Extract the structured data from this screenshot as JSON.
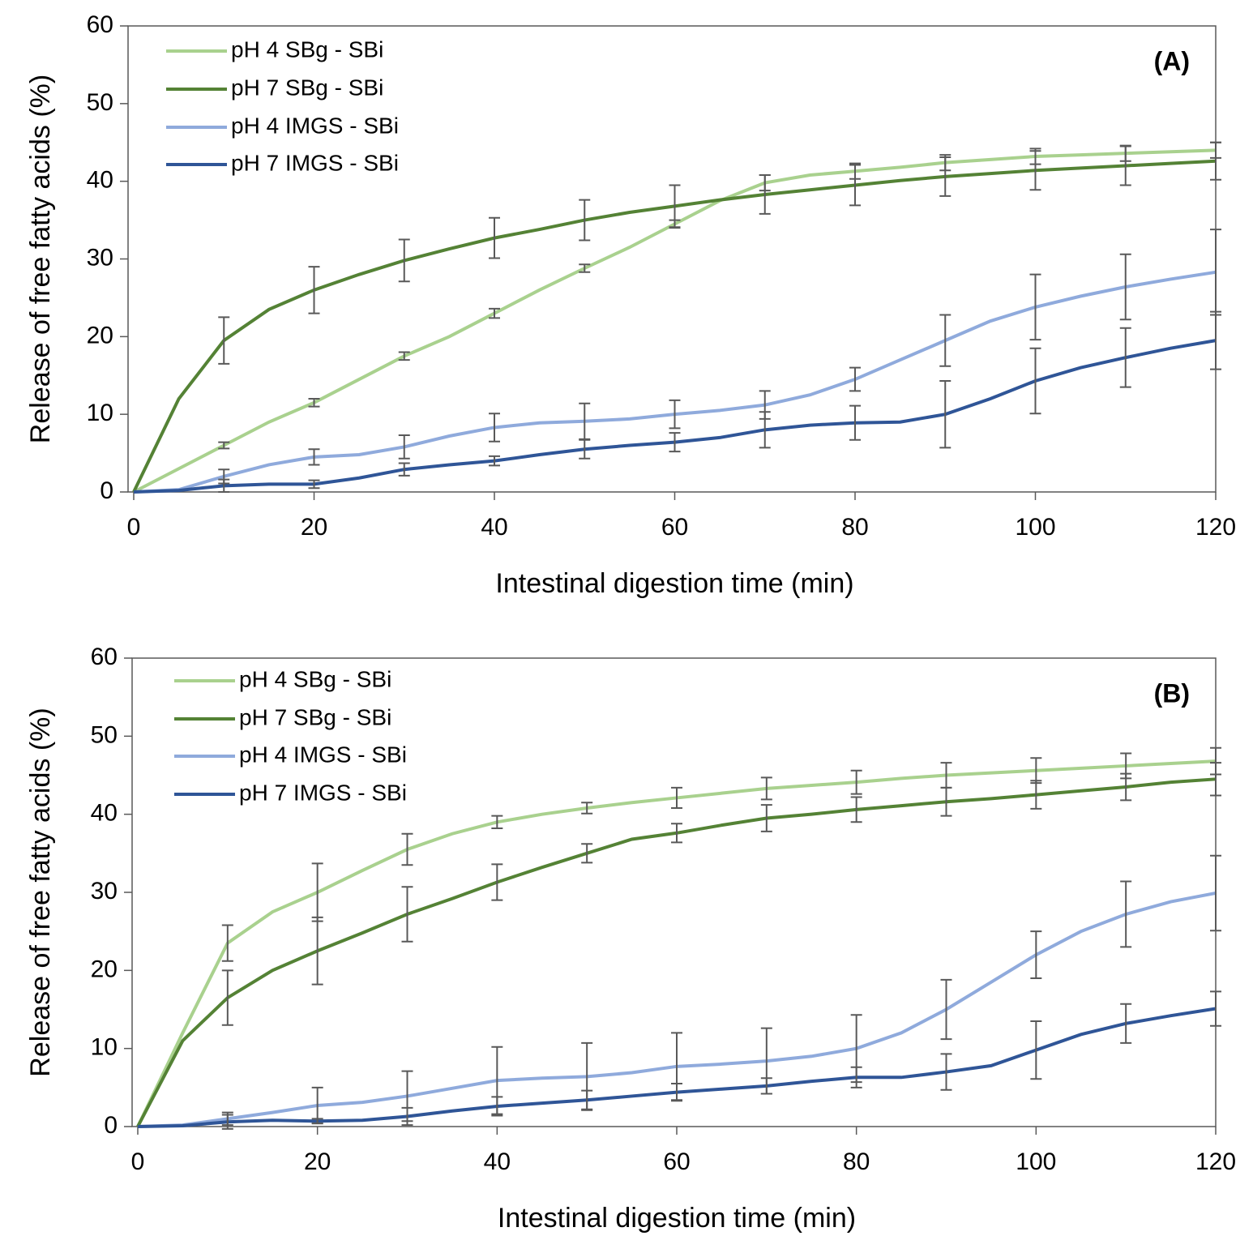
{
  "chart_data": [
    {
      "type": "line",
      "annotation": "(A)",
      "xlabel": "Intestinal digestion time (min)",
      "ylabel": "Release of free fatty acids (%)",
      "xlim": [
        0,
        120
      ],
      "ylim": [
        0,
        60
      ],
      "xticks": [
        0,
        20,
        40,
        60,
        80,
        100,
        120
      ],
      "yticks": [
        0,
        10,
        20,
        30,
        40,
        50,
        60
      ],
      "x": [
        0,
        5,
        10,
        15,
        20,
        25,
        30,
        35,
        40,
        45,
        50,
        55,
        60,
        65,
        70,
        75,
        80,
        85,
        90,
        95,
        100,
        105,
        110,
        115,
        120
      ],
      "error_x": [
        10,
        20,
        30,
        40,
        50,
        60,
        70,
        80,
        90,
        100,
        110,
        120
      ],
      "series": [
        {
          "name": "pH 4 SBg - SBi",
          "color": "#a9d18e",
          "values": [
            0,
            3,
            6,
            9,
            11.5,
            14.5,
            17.5,
            20,
            23,
            26,
            28.8,
            31.5,
            34.5,
            37.5,
            39.8,
            40.8,
            41.3,
            41.8,
            42.4,
            42.8,
            43.2,
            43.4,
            43.6,
            43.8,
            44
          ],
          "errors": [
            0.4,
            0.5,
            0.5,
            0.6,
            0.5,
            0.5,
            1,
            1,
            1,
            1,
            1,
            1
          ]
        },
        {
          "name": "pH 7 SBg - SBi",
          "color": "#548235",
          "values": [
            0,
            12,
            19.5,
            23.5,
            26,
            28,
            29.8,
            31.3,
            32.7,
            33.8,
            35,
            36,
            36.8,
            37.6,
            38.3,
            38.9,
            39.5,
            40.1,
            40.6,
            41,
            41.4,
            41.7,
            42,
            42.3,
            42.6
          ],
          "errors": [
            3,
            3,
            2.7,
            2.6,
            2.6,
            2.7,
            2.5,
            2.6,
            2.5,
            2.5,
            2.5,
            2.4
          ]
        },
        {
          "name": "pH 4 IMGS - SBi",
          "color": "#8faadc",
          "values": [
            0,
            0.3,
            2,
            3.5,
            4.5,
            4.8,
            5.8,
            7.2,
            8.3,
            8.9,
            9.1,
            9.4,
            10,
            10.5,
            11.2,
            12.5,
            14.5,
            17,
            19.5,
            22,
            23.8,
            25.2,
            26.4,
            27.4,
            28.3
          ],
          "errors": [
            0.9,
            1,
            1.5,
            1.8,
            2.3,
            1.8,
            1.8,
            1.5,
            3.3,
            4.2,
            4.2,
            5.5
          ]
        },
        {
          "name": "pH 7 IMGS - SBi",
          "color": "#2f5597",
          "values": [
            0,
            0.2,
            0.8,
            1,
            1,
            1.8,
            2.9,
            3.5,
            4,
            4.8,
            5.5,
            6,
            6.4,
            7,
            8,
            8.6,
            8.9,
            9,
            10,
            12,
            14.3,
            16,
            17.3,
            18.5,
            19.5
          ],
          "errors": [
            0.8,
            0.5,
            0.8,
            0.6,
            1.2,
            1.2,
            2.3,
            2.2,
            4.3,
            4.2,
            3.8,
            3.7
          ]
        }
      ]
    },
    {
      "type": "line",
      "annotation": "(B)",
      "xlabel": "Intestinal digestion time (min)",
      "ylabel": "Release of free fatty acids (%)",
      "xlim": [
        0,
        120
      ],
      "ylim": [
        0,
        60
      ],
      "xticks": [
        0,
        20,
        40,
        60,
        80,
        100,
        120
      ],
      "yticks": [
        0,
        10,
        20,
        30,
        40,
        50,
        60
      ],
      "x": [
        0,
        5,
        10,
        15,
        20,
        25,
        30,
        35,
        40,
        45,
        50,
        55,
        60,
        65,
        70,
        75,
        80,
        85,
        90,
        95,
        100,
        105,
        110,
        115,
        120
      ],
      "error_x": [
        10,
        20,
        30,
        40,
        50,
        60,
        70,
        80,
        90,
        100,
        110,
        120
      ],
      "series": [
        {
          "name": "pH 4 SBg - SBi",
          "color": "#a9d18e",
          "values": [
            0,
            12,
            23.5,
            27.5,
            30,
            32.8,
            35.5,
            37.5,
            39,
            40,
            40.8,
            41.5,
            42.1,
            42.7,
            43.3,
            43.7,
            44.1,
            44.6,
            45,
            45.3,
            45.6,
            45.9,
            46.2,
            46.5,
            46.8
          ],
          "errors": [
            2.3,
            3.7,
            2,
            0.8,
            0.7,
            1.3,
            1.4,
            1.5,
            1.6,
            1.6,
            1.6,
            1.7
          ]
        },
        {
          "name": "pH 7 SBg - SBi",
          "color": "#548235",
          "values": [
            0,
            11,
            16.5,
            20,
            22.5,
            24.8,
            27.2,
            29.2,
            31.3,
            33.2,
            35,
            36.8,
            37.6,
            38.6,
            39.5,
            40,
            40.6,
            41.1,
            41.6,
            42,
            42.5,
            43,
            43.5,
            44.1,
            44.5
          ],
          "errors": [
            3.5,
            4.3,
            3.5,
            2.3,
            1.2,
            1.2,
            1.7,
            1.6,
            1.8,
            1.8,
            1.7,
            2.1
          ]
        },
        {
          "name": "pH 4 IMGS - SBi",
          "color": "#8faadc",
          "values": [
            0,
            0.2,
            1,
            1.8,
            2.7,
            3.1,
            3.9,
            4.9,
            5.9,
            6.2,
            6.4,
            6.9,
            7.7,
            8,
            8.4,
            9,
            10,
            12,
            15,
            18.5,
            22,
            25,
            27.2,
            28.8,
            29.9
          ],
          "errors": [
            0.8,
            2.3,
            3.2,
            4.3,
            4.3,
            4.3,
            4.2,
            4.3,
            3.8,
            3,
            4.2,
            4.8
          ]
        },
        {
          "name": "pH 7 IMGS - SBi",
          "color": "#2f5597",
          "values": [
            0,
            0.1,
            0.6,
            0.8,
            0.7,
            0.8,
            1.3,
            2,
            2.6,
            3,
            3.4,
            3.9,
            4.4,
            4.8,
            5.2,
            5.8,
            6.3,
            6.3,
            7,
            7.8,
            9.8,
            11.8,
            13.2,
            14.2,
            15.1
          ],
          "errors": [
            0.9,
            0.3,
            1.1,
            1.2,
            1.2,
            1.1,
            1,
            1.3,
            2.3,
            3.7,
            2.5,
            2.2
          ]
        }
      ]
    }
  ]
}
